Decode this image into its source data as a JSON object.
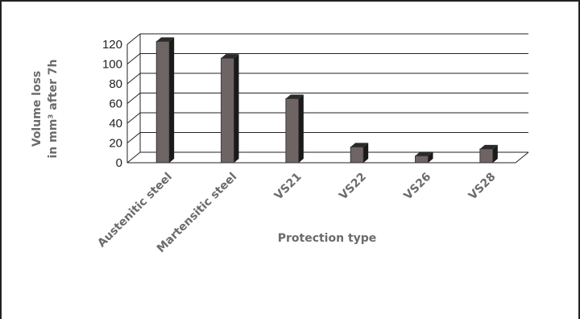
{
  "chart_data": {
    "type": "bar",
    "title": "",
    "categories": [
      "Austenitic steel",
      "Martensitic steel",
      "VS21",
      "VS22",
      "VS26",
      "VS28"
    ],
    "values": [
      123,
      106,
      65,
      16,
      7,
      14
    ],
    "xlabel": "Protection type",
    "ylabel_lines": [
      "Volume loss",
      "in mm³ after 7h"
    ],
    "ylim": [
      0,
      130
    ],
    "yticks": [
      "0",
      "20",
      "40",
      "60",
      "80",
      "100",
      "120"
    ],
    "grid": true,
    "legend": "none",
    "colors": {
      "bar_front": "#6e6464",
      "bar_side": "#1a1a1a",
      "bar_top": "#2b2b2b",
      "grid": "#222222",
      "label": "#6b6b6b"
    }
  }
}
